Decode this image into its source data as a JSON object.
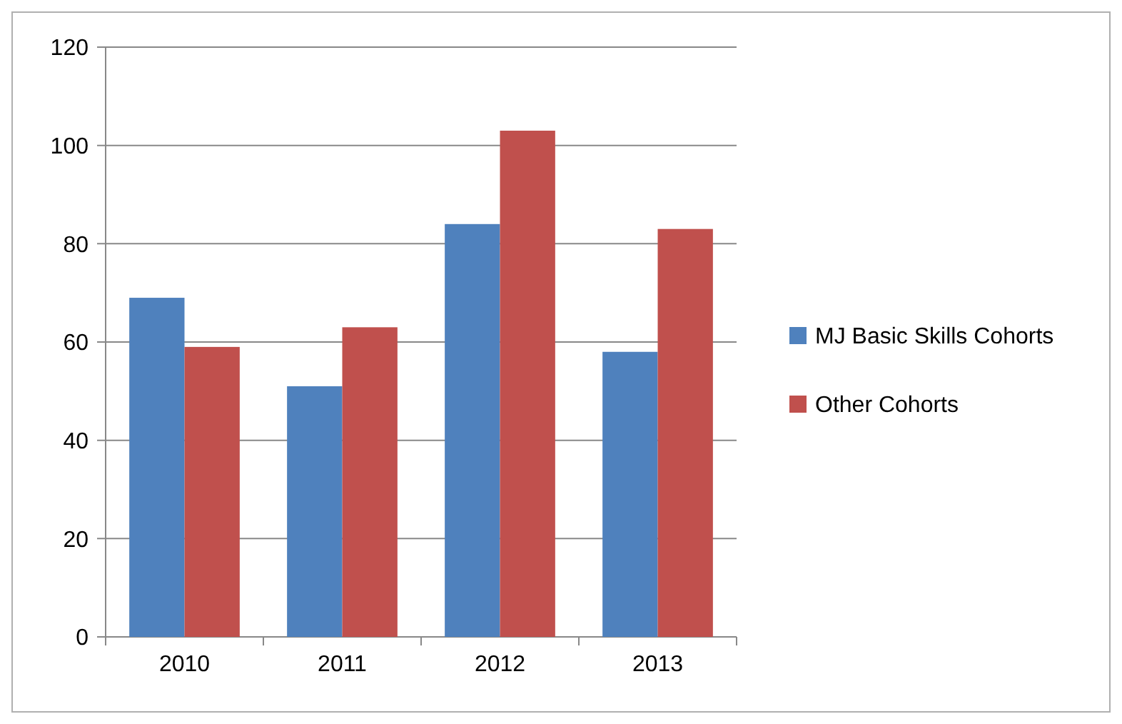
{
  "chart_data": {
    "type": "bar",
    "categories": [
      "2010",
      "2011",
      "2012",
      "2013"
    ],
    "series": [
      {
        "name": "MJ Basic Skills Cohorts",
        "color": "#4f81bd",
        "values": [
          69,
          51,
          84,
          58
        ]
      },
      {
        "name": "Other Cohorts",
        "color": "#c0504d",
        "values": [
          59,
          63,
          103,
          83
        ]
      }
    ],
    "ylim": [
      0,
      120
    ],
    "yticks": [
      0,
      20,
      40,
      60,
      80,
      100,
      120
    ],
    "grid": "y",
    "legend": "right"
  }
}
